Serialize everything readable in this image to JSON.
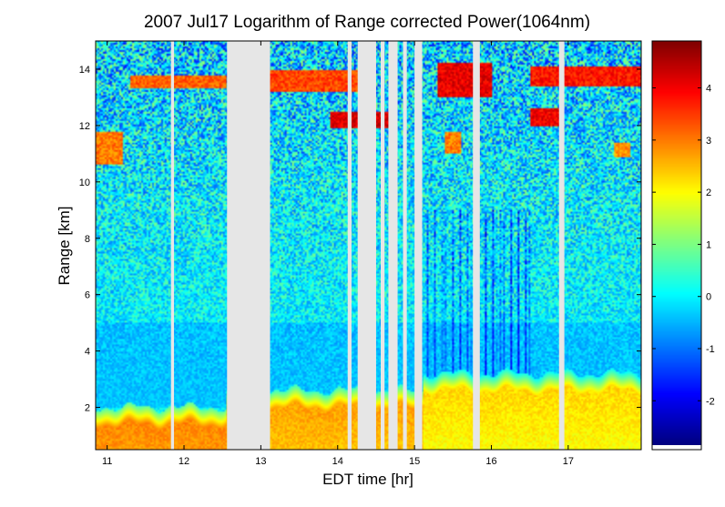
{
  "chart_data": {
    "type": "heatmap",
    "title": "2007 Jul17  Logarithm of Range corrected Power(1064nm)",
    "xlabel": "EDT time [hr]",
    "ylabel": "Range [km]",
    "xlim": [
      10.85,
      17.95
    ],
    "ylim": [
      0.5,
      15.0
    ],
    "xticks": [
      11,
      12,
      13,
      14,
      15,
      16,
      17
    ],
    "yticks": [
      2,
      4,
      6,
      8,
      10,
      12,
      14
    ],
    "colorbar": {
      "colormap": "jet",
      "clim": [
        -2.85,
        4.9
      ],
      "ticks": [
        -2,
        -1,
        0,
        1,
        2,
        3,
        4
      ]
    },
    "background_level": 0.0,
    "boundary_layer": [
      {
        "x": [
          10.85,
          12.55
        ],
        "top_km": 1.4,
        "value": 2.9
      },
      {
        "x": [
          12.55,
          15.1
        ],
        "top_km": 2.0,
        "value": 2.7
      },
      {
        "x": [
          15.1,
          17.95
        ],
        "top_km": 2.6,
        "value": 2.3
      }
    ],
    "aerosol_layer": {
      "range_km": [
        2.0,
        5.0
      ],
      "value": -0.8
    },
    "cloud_layers": [
      {
        "x": [
          11.3,
          12.55
        ],
        "range_km": [
          13.3,
          13.8
        ],
        "value": 3.2
      },
      {
        "x": [
          13.1,
          14.3
        ],
        "range_km": [
          13.2,
          14.0
        ],
        "value": 3.4
      },
      {
        "x": [
          15.3,
          16.0
        ],
        "range_km": [
          13.0,
          14.2
        ],
        "value": 4.1
      },
      {
        "x": [
          16.5,
          17.95
        ],
        "range_km": [
          13.4,
          14.1
        ],
        "value": 3.8
      },
      {
        "x": [
          13.9,
          14.7
        ],
        "range_km": [
          11.9,
          12.5
        ],
        "value": 4.2
      },
      {
        "x": [
          16.5,
          16.9
        ],
        "range_km": [
          12.0,
          12.6
        ],
        "value": 4.0
      },
      {
        "x": [
          15.4,
          15.6
        ],
        "range_km": [
          11.0,
          11.8
        ],
        "value": 3.0
      },
      {
        "x": [
          10.85,
          11.2
        ],
        "range_km": [
          10.6,
          11.8
        ],
        "value": 3.0
      },
      {
        "x": [
          17.6,
          17.8
        ],
        "range_km": [
          10.9,
          11.4
        ],
        "value": 2.8
      }
    ],
    "missing_data": [
      [
        11.83,
        11.87
      ],
      [
        12.56,
        13.12
      ],
      [
        14.13,
        14.18
      ],
      [
        14.26,
        14.5
      ],
      [
        14.56,
        14.61
      ],
      [
        14.66,
        14.78
      ],
      [
        14.85,
        14.9
      ],
      [
        15.0,
        15.1
      ],
      [
        15.76,
        15.85
      ],
      [
        16.88,
        16.95
      ]
    ]
  }
}
